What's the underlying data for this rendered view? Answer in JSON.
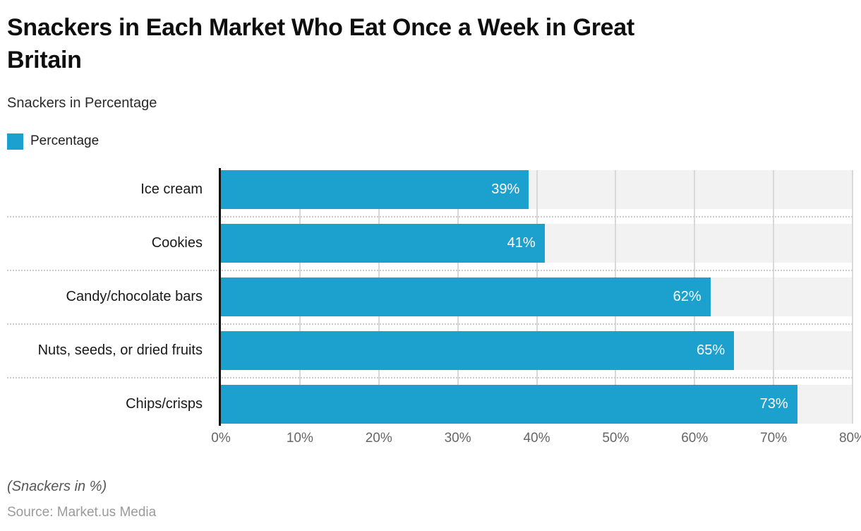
{
  "header": {
    "title": "Snackers in Each Market Who Eat Once a Week in Great Britain",
    "title_lines": [
      "Snackers in Each Market Who Eat Once a Week in Great",
      "Britain"
    ],
    "subtitle": "Snackers in Percentage"
  },
  "legend": {
    "label": "Percentage",
    "color": "#1CA0CE"
  },
  "chart_data": {
    "type": "bar",
    "orientation": "horizontal",
    "title": "Snackers in Each Market Who Eat Once a Week in Great Britain",
    "subtitle": "Snackers in Percentage",
    "categories": [
      "Ice cream",
      "Cookies",
      "Candy/chocolate bars",
      "Nuts, seeds, or dried fruits",
      "Chips/crisps"
    ],
    "series": [
      {
        "name": "Percentage",
        "values": [
          39,
          41,
          62,
          65,
          73
        ]
      }
    ],
    "values": [
      39,
      41,
      62,
      65,
      73
    ],
    "value_labels": [
      "39%",
      "41%",
      "62%",
      "65%",
      "73%"
    ],
    "xlabel": "",
    "ylabel": "",
    "xlim": [
      0,
      80
    ],
    "x_ticks": [
      "0%",
      "10%",
      "20%",
      "30%",
      "40%",
      "50%",
      "60%",
      "70%",
      "80%"
    ],
    "grid": true,
    "legend_position": "top-left",
    "bar_color": "#1CA0CE",
    "track_color": "#F2F2F2",
    "gridline_color": "#D9D9D9",
    "value_label_color": "#FFFFFF"
  },
  "footer": {
    "note": "(Snackers in %)",
    "source": "Source: Market.us Media"
  }
}
